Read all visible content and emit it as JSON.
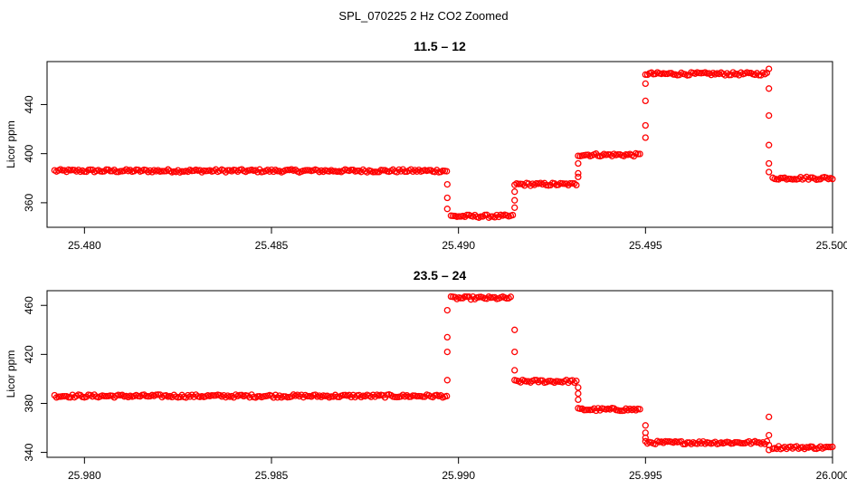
{
  "figure_title": "SPL_070225  2 Hz CO2 Zoomed",
  "chart_data": [
    {
      "type": "scatter",
      "title": "11.5 – 12",
      "xlabel": "",
      "ylabel": "Licor ppm",
      "xlim": [
        25.479,
        25.5
      ],
      "ylim": [
        340,
        475
      ],
      "xticks": [
        "25.480",
        "25.485",
        "25.490",
        "25.495",
        "25.500"
      ],
      "yticks": [
        "360",
        "400",
        "440"
      ],
      "grid": false,
      "color": "#ff0000",
      "marker": "open-circle",
      "segments": [
        {
          "x0": 25.4792,
          "x1": 25.4897,
          "y": 386
        },
        {
          "x0": 25.4898,
          "x1": 25.4915,
          "y": 349
        },
        {
          "x0": 25.4915,
          "x1": 25.4932,
          "y": 375
        },
        {
          "x0": 25.4932,
          "x1": 25.4949,
          "y": 399
        },
        {
          "x0": 25.495,
          "x1": 25.4983,
          "y": 465
        },
        {
          "x0": 25.4984,
          "x1": 25.5,
          "y": 380
        }
      ],
      "transitions": [
        {
          "x": 25.4897,
          "y": [
            375,
            364,
            355
          ]
        },
        {
          "x": 25.4915,
          "y": [
            369,
            362,
            356
          ]
        },
        {
          "x": 25.4932,
          "y": [
            381,
            384,
            392
          ]
        },
        {
          "x": 25.495,
          "y": [
            413,
            423,
            443,
            457
          ]
        },
        {
          "x": 25.4983,
          "y": [
            469,
            453,
            431,
            407,
            392,
            385
          ]
        }
      ]
    },
    {
      "type": "scatter",
      "title": "23.5 – 24",
      "xlabel": "",
      "ylabel": "Licor ppm",
      "xlim": [
        25.979,
        26.0
      ],
      "ylim": [
        336,
        472
      ],
      "xticks": [
        "25.980",
        "25.985",
        "25.990",
        "25.995",
        "26.000"
      ],
      "yticks": [
        "340",
        "380",
        "420",
        "460"
      ],
      "grid": false,
      "color": "#ff0000",
      "marker": "open-circle",
      "segments": [
        {
          "x0": 25.9792,
          "x1": 25.9897,
          "y": 386
        },
        {
          "x0": 25.9898,
          "x1": 25.9914,
          "y": 466
        },
        {
          "x0": 25.9915,
          "x1": 25.9932,
          "y": 398
        },
        {
          "x0": 25.9932,
          "x1": 25.9949,
          "y": 375
        },
        {
          "x0": 25.995,
          "x1": 25.9983,
          "y": 348
        },
        {
          "x0": 25.9984,
          "x1": 26.0,
          "y": 344
        }
      ],
      "transitions": [
        {
          "x": 25.9897,
          "y": [
            399,
            422,
            434,
            456
          ]
        },
        {
          "x": 25.9915,
          "y": [
            440,
            422,
            407
          ]
        },
        {
          "x": 25.9932,
          "y": [
            393,
            388,
            383
          ]
        },
        {
          "x": 25.995,
          "y": [
            362,
            356,
            352
          ]
        },
        {
          "x": 25.9983,
          "y": [
            369,
            354,
            346,
            342
          ]
        }
      ]
    }
  ]
}
